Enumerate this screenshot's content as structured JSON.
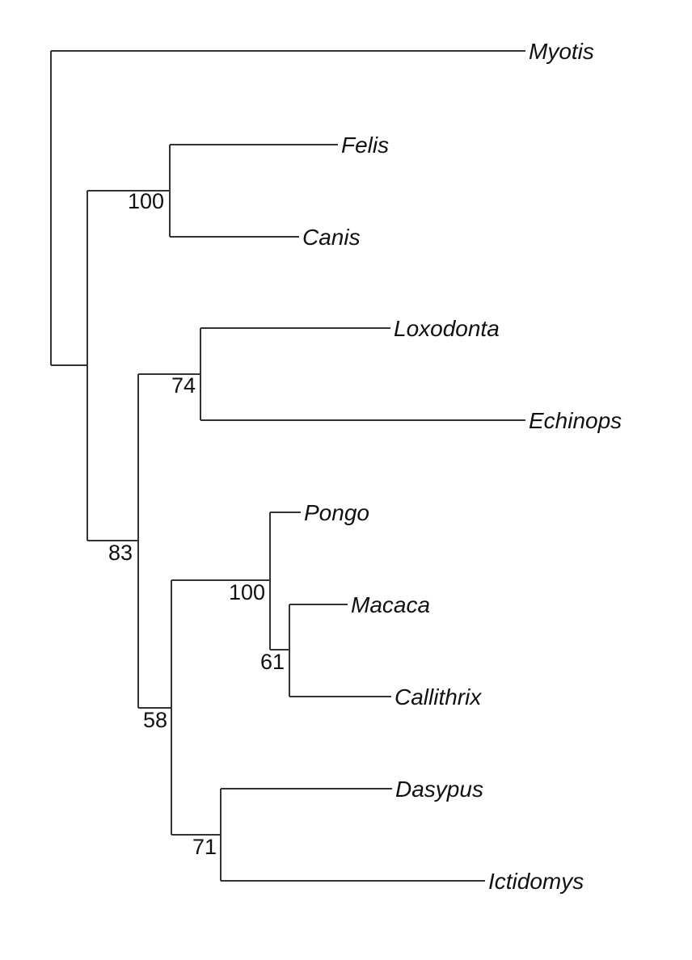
{
  "tree": {
    "taxa": {
      "myotis": "Myotis",
      "felis": "Felis",
      "canis": "Canis",
      "loxodonta": "Loxodonta",
      "echinops": "Echinops",
      "pongo": "Pongo",
      "macaca": "Macaca",
      "callithrix": "Callithrix",
      "dasypus": "Dasypus",
      "ictidomys": "Ictidomys"
    },
    "support": {
      "felis_canis": "100",
      "afrotheria": "74",
      "ingroup": "83",
      "primates": "100",
      "macaca_callithrix": "61",
      "euarchontoglires_xenarthra": "58",
      "dasypus_ictidomys": "71"
    },
    "line_color": "#333333"
  }
}
